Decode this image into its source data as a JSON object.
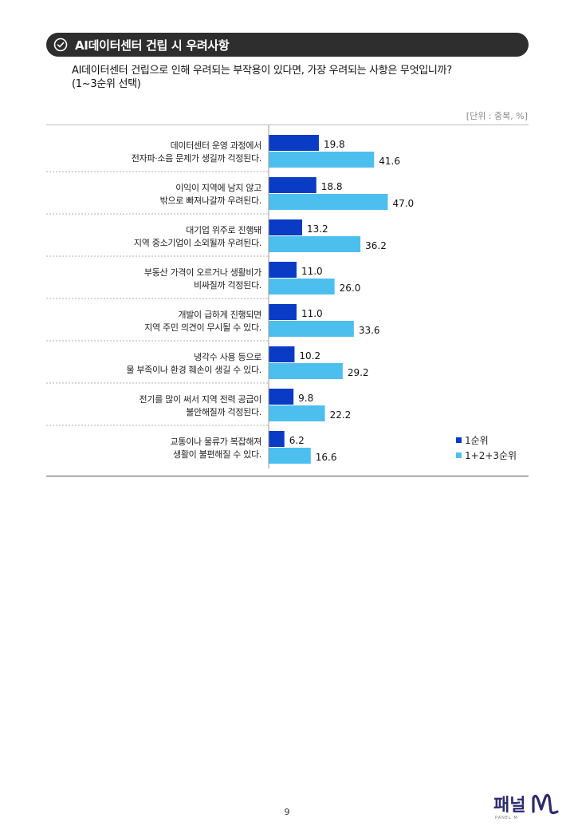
{
  "header": {
    "title": "AI데이터센터 건립 시 우려사항",
    "icon": "check-circle-icon"
  },
  "question": {
    "line1": "AI데이터센터 건립으로 인해 우려되는 부작용이 있다면, 가장 우려되는 사항은 무엇입니까?",
    "line2": "(1~3순위 선택)"
  },
  "unit_label": "[단위 : 중복, %]",
  "chart_data": {
    "type": "bar",
    "orientation": "horizontal",
    "categories": [
      [
        "데이터센터 운영 과정에서",
        "전자파·소음 문제가 생길까 걱정된다."
      ],
      [
        "이익이 지역에 남지 않고",
        "밖으로 빠져나갈까 우려된다."
      ],
      [
        "대기업 위주로 진행돼",
        "지역 중소기업이 소외될까 우려된다."
      ],
      [
        "부동산 가격이 오르거나 생활비가",
        "비싸질까 걱정된다."
      ],
      [
        "개발이 급하게 진행되면",
        "지역 주민 의견이 무시될 수 있다."
      ],
      [
        "냉각수 사용 등으로",
        "물 부족이나 환경 훼손이 생길 수 있다."
      ],
      [
        "전기를 많이 써서 지역 전력 공급이",
        "불안해질까 걱정된다."
      ],
      [
        "교통이나 물류가 복잡해져",
        "생활이 불편해질 수 있다."
      ]
    ],
    "series": [
      {
        "name": "1순위",
        "color": "#0a3bc4",
        "values": [
          19.8,
          18.8,
          13.2,
          11.0,
          11.0,
          10.2,
          9.8,
          6.2
        ]
      },
      {
        "name": "1+2+3순위",
        "color": "#4dbfef",
        "values": [
          41.6,
          47.0,
          36.2,
          26.0,
          33.6,
          29.2,
          22.2,
          16.6
        ]
      }
    ],
    "xlim": [
      0,
      100
    ],
    "grid": false,
    "legend_position": "bottom-right"
  },
  "logo": {
    "text": "패널M",
    "subtext": "PANEL M"
  },
  "page_number": "9"
}
